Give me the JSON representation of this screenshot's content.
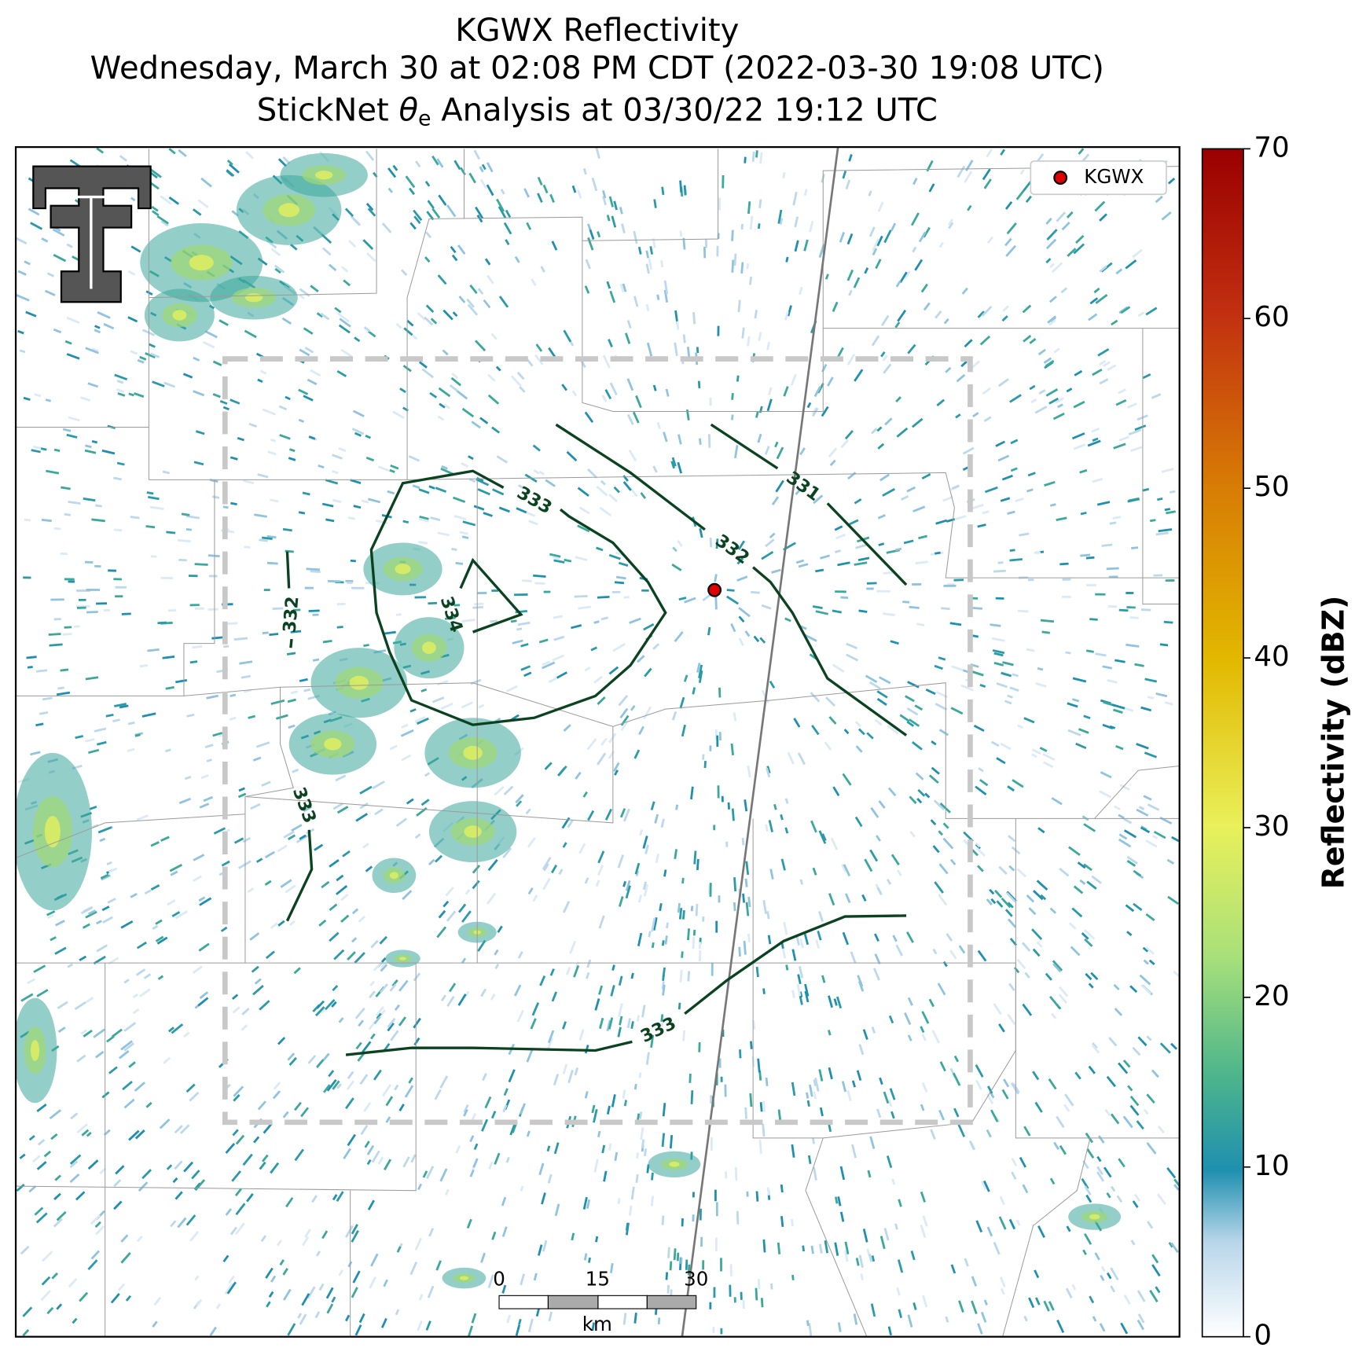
{
  "title": {
    "line1": "KGWX Reflectivity",
    "line2": "Wednesday, March 30 at 02:08 PM CDT (2022-03-30 19:08 UTC)",
    "line3_before": "StickNet ",
    "line3_symbol": "θ",
    "line3_subscript": "e",
    "line3_after": " Analysis at 03/30/22 19:12 UTC"
  },
  "legend": {
    "label": "KGWX"
  },
  "colorbar": {
    "label": "Reflectivity (dBZ)",
    "ylim": [
      0,
      70
    ],
    "ticks": [
      0,
      10,
      20,
      30,
      40,
      50,
      60,
      70
    ]
  },
  "contour_labels": [
    "333",
    "334",
    "332",
    "331",
    "332",
    "333",
    "333"
  ],
  "scale_bar": {
    "ticks": [
      0,
      15,
      30
    ],
    "unit": "km"
  }
}
